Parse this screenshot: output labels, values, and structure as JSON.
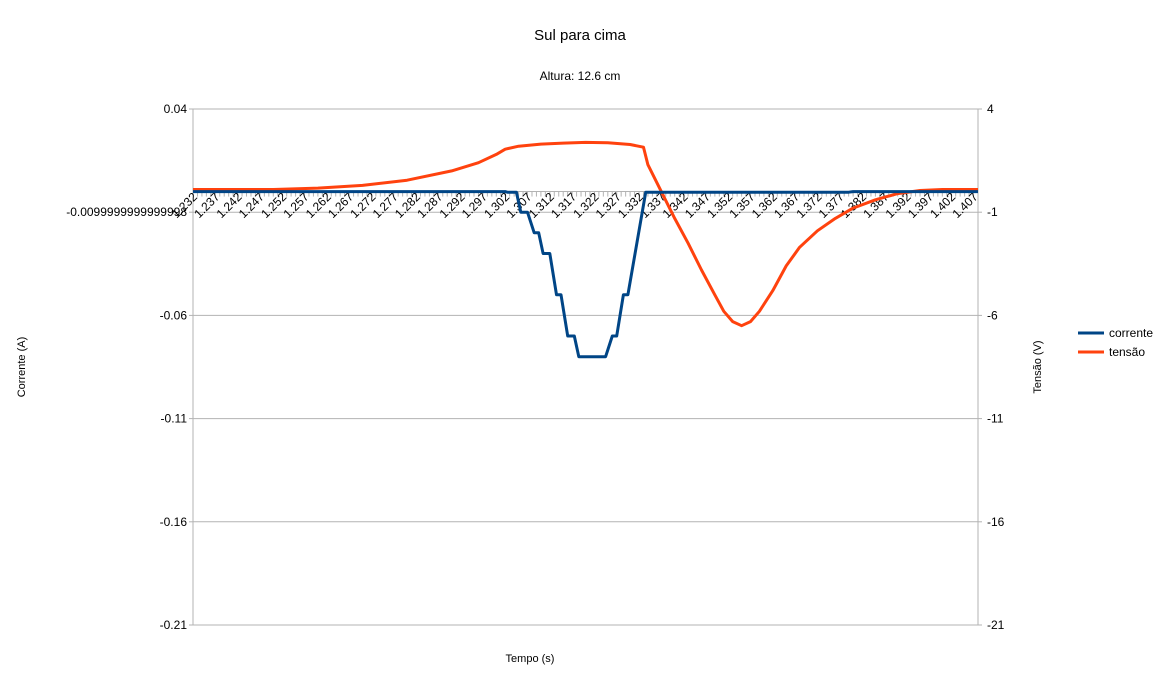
{
  "chart_data": {
    "type": "line",
    "title": "Sul para cima",
    "subtitle": "Altura: 12.6 cm",
    "xlabel": "Tempo (s)",
    "ylabel_left": "Corrente (A)",
    "ylabel_right": "Tensão (V)",
    "x_range": [
      1.232,
      1.408
    ],
    "y_left_range": [
      -0.21,
      0.04
    ],
    "y_left_ticks": [
      "0.04",
      "-0.0099999999999998",
      "-0.06",
      "-0.11",
      "-0.16",
      "-0.21"
    ],
    "y_right_range": [
      -21,
      4
    ],
    "y_right_ticks": [
      "4",
      "-1",
      "-6",
      "-11",
      "-16",
      "-21"
    ],
    "x_tick_labels": [
      "1.232",
      "1.237",
      "1.242",
      "1.247",
      "1.252",
      "1.257",
      "1.262",
      "1.267",
      "1.272",
      "1.277",
      "1.282",
      "1.287",
      "1.292",
      "1.297",
      "1.302",
      "1.307",
      "1.312",
      "1.317",
      "1.322",
      "1.327",
      "1.332",
      "1.337",
      "1.342",
      "1.347",
      "1.352",
      "1.357",
      "1.362",
      "1.367",
      "1.372",
      "1.377",
      "1.382",
      "1.387",
      "1.392",
      "1.397",
      "1.402",
      "1.407"
    ],
    "grid": true,
    "legend_position": "right",
    "series": [
      {
        "name": "corrente",
        "axis": "left",
        "color": "#004586",
        "points": [
          [
            1.232,
            0.0
          ],
          [
            1.302,
            0.0
          ],
          [
            1.3025,
            -0.0003
          ],
          [
            1.3045,
            -0.0003
          ],
          [
            1.3055,
            -0.01
          ],
          [
            1.307,
            -0.01
          ],
          [
            1.3085,
            -0.02
          ],
          [
            1.3095,
            -0.02
          ],
          [
            1.3105,
            -0.03
          ],
          [
            1.312,
            -0.03
          ],
          [
            1.3135,
            -0.05
          ],
          [
            1.3145,
            -0.05
          ],
          [
            1.316,
            -0.07
          ],
          [
            1.3175,
            -0.07
          ],
          [
            1.3185,
            -0.08
          ],
          [
            1.3245,
            -0.08
          ],
          [
            1.326,
            -0.07
          ],
          [
            1.327,
            -0.07
          ],
          [
            1.3285,
            -0.05
          ],
          [
            1.3295,
            -0.05
          ],
          [
            1.3335,
            -0.0003
          ],
          [
            1.379,
            -0.0003
          ],
          [
            1.38,
            0.0
          ],
          [
            1.408,
            0.0
          ]
        ]
      },
      {
        "name": "tensão",
        "axis": "right",
        "color": "#ff420e",
        "points": [
          [
            1.232,
            0.1
          ],
          [
            1.25,
            0.1
          ],
          [
            1.26,
            0.17
          ],
          [
            1.27,
            0.3
          ],
          [
            1.28,
            0.55
          ],
          [
            1.29,
            1.0
          ],
          [
            1.296,
            1.4
          ],
          [
            1.3,
            1.8
          ],
          [
            1.302,
            2.05
          ],
          [
            1.305,
            2.2
          ],
          [
            1.31,
            2.3
          ],
          [
            1.315,
            2.35
          ],
          [
            1.32,
            2.38
          ],
          [
            1.325,
            2.36
          ],
          [
            1.33,
            2.28
          ],
          [
            1.333,
            2.15
          ],
          [
            1.334,
            1.3
          ],
          [
            1.337,
            0.0
          ],
          [
            1.34,
            -1.3
          ],
          [
            1.343,
            -2.5
          ],
          [
            1.346,
            -3.8
          ],
          [
            1.349,
            -5.0
          ],
          [
            1.351,
            -5.8
          ],
          [
            1.353,
            -6.3
          ],
          [
            1.355,
            -6.5
          ],
          [
            1.357,
            -6.3
          ],
          [
            1.359,
            -5.8
          ],
          [
            1.362,
            -4.8
          ],
          [
            1.365,
            -3.6
          ],
          [
            1.368,
            -2.7
          ],
          [
            1.372,
            -1.9
          ],
          [
            1.376,
            -1.3
          ],
          [
            1.38,
            -0.8
          ],
          [
            1.385,
            -0.4
          ],
          [
            1.39,
            -0.1
          ],
          [
            1.395,
            0.05
          ],
          [
            1.4,
            0.1
          ],
          [
            1.408,
            0.1
          ]
        ]
      }
    ]
  }
}
